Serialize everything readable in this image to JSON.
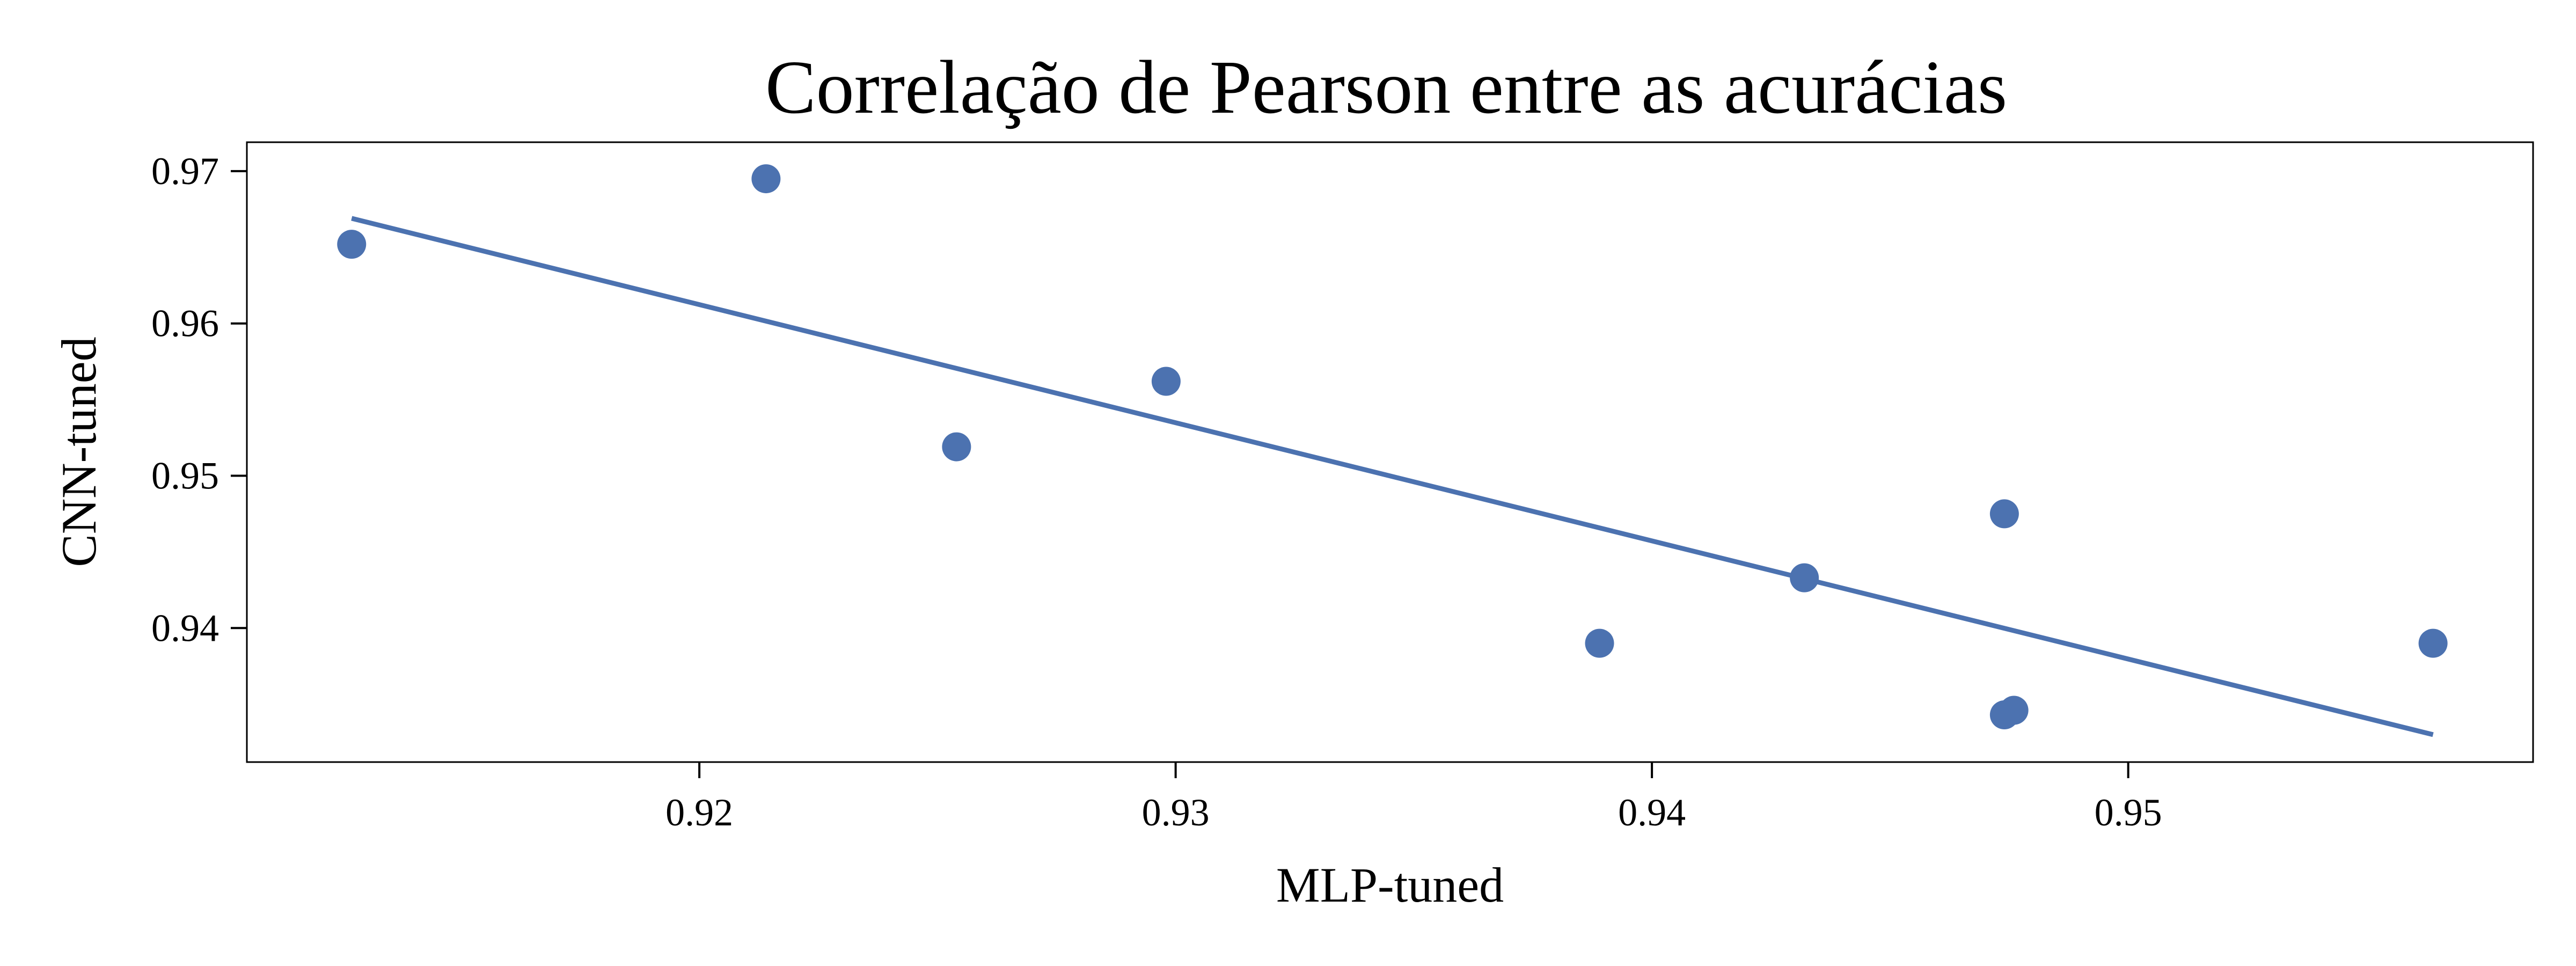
{
  "chart_data": {
    "type": "scatter",
    "title": "Correlação de Pearson entre as acurácias",
    "xlabel": "MLP-tuned",
    "ylabel": "CNN-tuned",
    "xlim": [
      0.9105,
      0.9585
    ],
    "ylim": [
      0.9312,
      0.9719
    ],
    "xticks": [
      0.92,
      0.93,
      0.94,
      0.95
    ],
    "xtick_labels": [
      "0.92",
      "0.93",
      "0.94",
      "0.95"
    ],
    "yticks": [
      0.94,
      0.95,
      0.96,
      0.97
    ],
    "ytick_labels": [
      "0.94",
      "0.95",
      "0.96",
      "0.97"
    ],
    "grid": false,
    "legend": "none",
    "points": [
      {
        "x": 0.9127,
        "y": 0.9652
      },
      {
        "x": 0.9214,
        "y": 0.9695
      },
      {
        "x": 0.9254,
        "y": 0.9519
      },
      {
        "x": 0.9298,
        "y": 0.9562
      },
      {
        "x": 0.9389,
        "y": 0.939
      },
      {
        "x": 0.9432,
        "y": 0.9433
      },
      {
        "x": 0.9474,
        "y": 0.9475
      },
      {
        "x": 0.9474,
        "y": 0.9343
      },
      {
        "x": 0.9476,
        "y": 0.9346
      },
      {
        "x": 0.9564,
        "y": 0.939
      }
    ],
    "regression_line": [
      {
        "x": 0.9127,
        "y": 0.9669
      },
      {
        "x": 0.9564,
        "y": 0.933
      }
    ],
    "colors": {
      "marker": "#4c72b0",
      "line": "#4c72b0",
      "axes": "#000000"
    }
  }
}
